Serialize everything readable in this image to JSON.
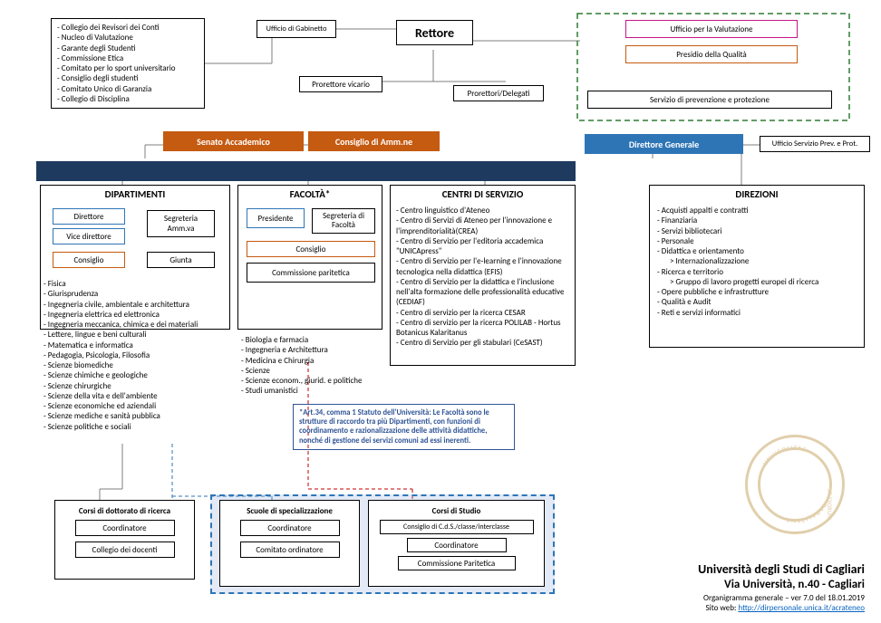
{
  "colors": {
    "navy": "#1f3a5f",
    "orange": "#c55a11",
    "blue_accent": "#2e75b6",
    "red_border": "#c00000",
    "magenta": "#c71585",
    "green_dash": "#2e7d32",
    "info_blue": "#2f5496",
    "light_blue_fill": "#8faadc",
    "seal": "#c9a96a",
    "link": "#0563c1"
  },
  "top_left_list": [
    "Collegio dei Revisori dei Conti",
    "Nucleo di Valutazione",
    "Garante degli Studenti",
    "Commissione Etica",
    "Comitato per lo sport universitario",
    "Consiglio degli studenti",
    "Comitato Unico di Garanzia",
    "Collegio di Disciplina"
  ],
  "ufficio_gabinetto": "Ufficio di Gabinetto",
  "rettore": "Rettore",
  "prorettore_vicario": "Prorettore vicario",
  "prorettori_delegati": "Prorettori/Delegati",
  "uff_valutazione": "Ufficio per la Valutazione",
  "presidio_qualita": "Presidio della Qualità",
  "serv_prev_prot": "Servizio di prevenzione e protezione",
  "senato": "Senato Accademico",
  "consiglio_amm": "Consiglio di Amm.ne",
  "direttore_generale": "Direttore Generale",
  "uff_serv_prev": "Ufficio Servizio Prev. e Prot.",
  "dipartimenti": {
    "title": "DIPARTIMENTI",
    "direttore": "Direttore",
    "vice_direttore": "Vice direttore",
    "segreteria": "Segreteria Amm.va",
    "consiglio": "Consiglio",
    "giunta": "Giunta",
    "list": [
      "Fisica",
      "Giurisprudenza",
      "Ingegneria civile, ambientale e architettura",
      "Ingegneria elettrica ed elettronica",
      "Ingegneria meccanica, chimica e dei materiali",
      "Lettere, lingue e beni culturali",
      "Matematica e informatica",
      "Pedagogia, Psicologia, Filosofia",
      "Scienze biomediche",
      "Scienze chimiche e geologiche",
      "Scienze chirurgiche",
      "Scienze della vita e dell'ambiente",
      "Scienze economiche ed aziendali",
      "Scienze mediche e sanità pubblica",
      "Scienze politiche e sociali"
    ]
  },
  "facolta": {
    "title": "FACOLTÀ*",
    "presidente": "Presidente",
    "segreteria": "Segreteria di Facoltà",
    "consiglio": "Consiglio",
    "commissione_paritetica": "Commissione paritetica",
    "list": [
      "Biologia e farmacia",
      "Ingegneria e Architettura",
      "Medicina e Chirurgia",
      "Scienze",
      "Scienze econom., giurid. e politiche",
      "Studi umanistici"
    ]
  },
  "centri": {
    "title": "CENTRI DI SERVIZIO",
    "list": [
      "Centro linguistico d'Ateneo",
      "Centro di Servizi di Ateneo per l'innovazione e l'imprenditorialità(CREA)",
      "Centro di Servizio per l'editoria accademica \"UNICApress\"",
      "Centro di Servizio per l'e-learning e l'innovazione tecnologica nella didattica (EFIS)",
      "Centro di Servizio per la didattica e l'inclusione nell'alta formazione delle professionalità educative (CEDIAF)",
      "Centro di servizio per la ricerca CESAR",
      "Centro di servizio per la ricerca POLILAB - Hortus Botanicus Kalaritanus",
      "Centro di Servizio per gli stabulari (CeSAST)"
    ]
  },
  "direzioni": {
    "title": "DIREZIONI",
    "items": [
      {
        "t": "Acquisti appalti e contratti"
      },
      {
        "t": "Finanziaria"
      },
      {
        "t": "Servizi bibliotecari"
      },
      {
        "t": "Personale"
      },
      {
        "t": "Didattica e orientamento"
      },
      {
        "t": "Internazionalizzazione",
        "indent": true,
        "arrow": true
      },
      {
        "t": "Ricerca e territorio"
      },
      {
        "t": "Gruppo di lavoro progetti europei di ricerca",
        "indent": true,
        "arrow": true
      },
      {
        "t": "Opere pubbliche e infrastrutture"
      },
      {
        "t": "Qualità e Audit"
      },
      {
        "t": "Reti e servizi informatici"
      }
    ]
  },
  "note_art34": "*Art.34, comma 1 Statuto dell'Università: Le Facoltà sono le strutture di raccordo tra più Dipartimenti, con funzioni di coordinamento e razionalizzazione delle attività didattiche, nonché di gestione dei servizi comuni ad essi inerenti.",
  "dottorato": {
    "title": "Corsi di dottorato di ricerca",
    "coordinatore": "Coordinatore",
    "collegio": "Collegio dei docenti"
  },
  "specializzazione": {
    "title": "Scuole di specializzazione",
    "coordinatore": "Coordinatore",
    "comitato": "Comitato ordinatore"
  },
  "corsi_studio": {
    "title": "Corsi di Studio",
    "consiglio": "Consiglio di C.d.S./classe/interclasse",
    "coordinatore": "Coordinatore",
    "commissione": "Commissione Paritetica"
  },
  "footer": {
    "l1": "Università degli Studi di Cagliari",
    "l2": "Via Università, n.40 - Cagliari",
    "l3": "Organigramma generale – ver 7.0 del 18.01.2019",
    "l4_pre": "Sito web: ",
    "l4_link": "http://dirpersonale.unica.it/acrateneo"
  }
}
